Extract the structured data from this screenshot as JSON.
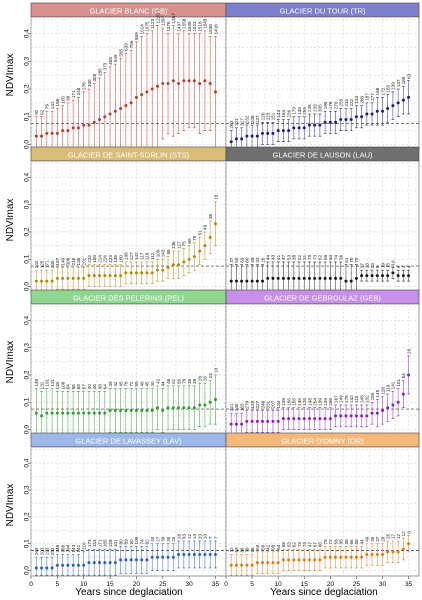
{
  "figure": {
    "ylabel": "NDVImax",
    "xlabel": "Years since deglaciation",
    "yticks": [
      "0.0",
      "0.1",
      "0.2",
      "0.3",
      "0.4"
    ],
    "xticks": [
      "0",
      "5",
      "10",
      "15",
      "20",
      "25",
      "30",
      "35"
    ]
  },
  "chart_data": [
    {
      "type": "scatter",
      "title": "GLACIER BLANC (GB)",
      "header_color": "#d9918f",
      "point_color": "#c0392b",
      "x": [
        1,
        2,
        3,
        4,
        5,
        6,
        7,
        8,
        9,
        10,
        11,
        12,
        13,
        14,
        15,
        16,
        17,
        18,
        19,
        20,
        21,
        22,
        23,
        24,
        25,
        26,
        27,
        28,
        29,
        30,
        31,
        32,
        33,
        34,
        35
      ],
      "y": [
        0.03,
        0.03,
        0.04,
        0.04,
        0.04,
        0.05,
        0.05,
        0.06,
        0.06,
        0.07,
        0.07,
        0.08,
        0.09,
        0.1,
        0.11,
        0.12,
        0.13,
        0.14,
        0.15,
        0.17,
        0.18,
        0.19,
        0.2,
        0.21,
        0.22,
        0.22,
        0.23,
        0.22,
        0.23,
        0.23,
        0.23,
        0.22,
        0.23,
        0.22,
        0.19
      ],
      "err": [
        0.07,
        0.07,
        0.08,
        0.08,
        0.09,
        0.09,
        0.1,
        0.1,
        0.11,
        0.12,
        0.13,
        0.14,
        0.15,
        0.16,
        0.17,
        0.17,
        0.18,
        0.19,
        0.19,
        0.2,
        0.21,
        0.21,
        0.21,
        0.22,
        0.2,
        0.18,
        0.2,
        0.18,
        0.18,
        0.17,
        0.17,
        0.18,
        0.18,
        0.17,
        0.2
      ],
      "labels": [
        "92",
        "62",
        "79",
        "141",
        "168",
        "105",
        "98",
        "171",
        "248",
        "276",
        "330",
        "309",
        "285",
        "373",
        "458",
        "549",
        "585",
        "639",
        "756",
        "859",
        "1014",
        "1075",
        "1123",
        "1220",
        "1287",
        "1376",
        "1457",
        "1497",
        "1558",
        "1545",
        "1523",
        "1518",
        "1543",
        "1538",
        "1416"
      ],
      "hline": 0.075,
      "xlim": [
        0,
        37
      ],
      "ylim": [
        -0.02,
        0.46
      ]
    },
    {
      "type": "scatter",
      "title": "GLACIER DU TOUR (TR)",
      "header_color": "#7e7fcc",
      "point_color": "#1a1a8c",
      "x": [
        1,
        2,
        3,
        4,
        5,
        6,
        7,
        8,
        9,
        10,
        11,
        12,
        13,
        14,
        15,
        16,
        17,
        18,
        19,
        20,
        21,
        22,
        23,
        24,
        25,
        26,
        27,
        28,
        29,
        30,
        31,
        32,
        33,
        34,
        35
      ],
      "y": [
        0.01,
        0.02,
        0.02,
        0.03,
        0.03,
        0.03,
        0.04,
        0.04,
        0.04,
        0.05,
        0.05,
        0.05,
        0.06,
        0.06,
        0.06,
        0.07,
        0.07,
        0.07,
        0.08,
        0.08,
        0.08,
        0.09,
        0.09,
        0.09,
        0.1,
        0.1,
        0.11,
        0.11,
        0.12,
        0.12,
        0.13,
        0.14,
        0.15,
        0.16,
        0.17
      ],
      "err": [
        0.04,
        0.04,
        0.04,
        0.04,
        0.04,
        0.04,
        0.04,
        0.04,
        0.04,
        0.04,
        0.04,
        0.04,
        0.04,
        0.04,
        0.04,
        0.04,
        0.04,
        0.04,
        0.04,
        0.04,
        0.04,
        0.04,
        0.04,
        0.04,
        0.04,
        0.04,
        0.04,
        0.04,
        0.05,
        0.05,
        0.05,
        0.05,
        0.05,
        0.05,
        0.06
      ],
      "labels": [
        "263",
        "221",
        "317",
        "252",
        "208",
        "137",
        "126",
        "223",
        "151",
        "143",
        "164",
        "236",
        "179",
        "148",
        "259",
        "226",
        "233",
        "305",
        "195",
        "176",
        "270",
        "250",
        "231",
        "222",
        "133",
        "268",
        "187",
        "277",
        "168",
        "172",
        "183",
        "139",
        "137",
        "185",
        "63"
      ],
      "hline": 0.075,
      "xlim": [
        0,
        37
      ],
      "ylim": [
        -0.02,
        0.46
      ]
    },
    {
      "type": "scatter",
      "title": "GLACIER DE SAINT-SORLIN (STS)",
      "header_color": "#d9bc78",
      "point_color": "#b8860b",
      "x": [
        1,
        2,
        3,
        4,
        5,
        6,
        7,
        8,
        9,
        10,
        11,
        12,
        13,
        14,
        15,
        16,
        17,
        18,
        19,
        20,
        21,
        22,
        23,
        24,
        25,
        26,
        27,
        28,
        29,
        30,
        31,
        32,
        33,
        34,
        35
      ],
      "y": [
        0.02,
        0.02,
        0.02,
        0.02,
        0.03,
        0.03,
        0.03,
        0.03,
        0.03,
        0.03,
        0.04,
        0.04,
        0.04,
        0.04,
        0.04,
        0.04,
        0.04,
        0.05,
        0.05,
        0.05,
        0.05,
        0.05,
        0.05,
        0.06,
        0.06,
        0.07,
        0.08,
        0.08,
        0.09,
        0.1,
        0.11,
        0.13,
        0.15,
        0.18,
        0.23
      ],
      "err": [
        0.04,
        0.04,
        0.04,
        0.04,
        0.04,
        0.04,
        0.04,
        0.04,
        0.04,
        0.04,
        0.04,
        0.04,
        0.04,
        0.04,
        0.04,
        0.04,
        0.04,
        0.04,
        0.04,
        0.04,
        0.04,
        0.04,
        0.04,
        0.04,
        0.04,
        0.04,
        0.05,
        0.05,
        0.05,
        0.05,
        0.05,
        0.05,
        0.05,
        0.06,
        0.08
      ],
      "labels": [
        "242",
        "125",
        "171",
        "245",
        "187",
        "140",
        "308",
        "218",
        "136",
        "201",
        "232",
        "189",
        "214",
        "226",
        "223",
        "136",
        "100",
        "108",
        "127",
        "142",
        "117",
        "119",
        "112",
        "109",
        "143",
        "88",
        "136",
        "127",
        "75",
        "65",
        "79",
        "51",
        "49",
        "38",
        "18"
      ],
      "hline": 0.075,
      "xlim": [
        0,
        37
      ],
      "ylim": [
        -0.02,
        0.46
      ]
    },
    {
      "type": "scatter",
      "title": "GLACIER DE LAUSON (LAU)",
      "header_color": "#6f6f6f",
      "point_color": "#1a1a1a",
      "x": [
        1,
        2,
        3,
        4,
        5,
        6,
        7,
        8,
        9,
        10,
        11,
        12,
        13,
        14,
        15,
        16,
        17,
        18,
        19,
        20,
        21,
        22,
        23,
        24,
        25,
        26,
        27,
        28,
        29,
        30,
        31,
        32,
        33,
        34,
        35
      ],
      "y": [
        0.02,
        0.02,
        0.02,
        0.02,
        0.02,
        0.02,
        0.02,
        0.03,
        0.03,
        0.03,
        0.03,
        0.03,
        0.03,
        0.03,
        0.03,
        0.03,
        0.03,
        0.03,
        0.03,
        0.03,
        0.03,
        0.03,
        0.02,
        0.02,
        0.03,
        0.04,
        0.04,
        0.04,
        0.04,
        0.04,
        0.04,
        0.05,
        0.04,
        0.04,
        0.04
      ],
      "err": [
        0.06,
        0.06,
        0.06,
        0.06,
        0.06,
        0.06,
        0.06,
        0.06,
        0.06,
        0.06,
        0.06,
        0.06,
        0.06,
        0.06,
        0.06,
        0.06,
        0.06,
        0.06,
        0.06,
        0.06,
        0.06,
        0.06,
        0.06,
        0.06,
        0.05,
        0.02,
        0.02,
        0.02,
        0.02,
        0.02,
        0.02,
        0.02,
        0.02,
        0.02,
        0.02
      ],
      "labels": [
        "37",
        "50",
        "69",
        "60",
        "49",
        "33",
        "25",
        "44",
        "43",
        "41",
        "47",
        "53",
        "38",
        "52",
        "31",
        "70",
        "73",
        "62",
        "58",
        "64",
        "74",
        "36",
        "51",
        "70",
        "70",
        "27",
        "23",
        "23",
        "8",
        "19",
        "13",
        "16",
        "6",
        "4",
        "4"
      ],
      "hline": 0.075,
      "xlim": [
        0,
        37
      ],
      "ylim": [
        -0.02,
        0.46
      ]
    },
    {
      "type": "scatter",
      "title": "GLACIER DES PELERINS (PEL)",
      "header_color": "#8fd68f",
      "point_color": "#2e9e2e",
      "x": [
        1,
        2,
        3,
        4,
        5,
        6,
        7,
        8,
        9,
        10,
        11,
        12,
        13,
        14,
        15,
        16,
        17,
        18,
        19,
        20,
        21,
        22,
        23,
        24,
        25,
        26,
        27,
        28,
        29,
        30,
        31,
        32,
        33,
        34,
        35
      ],
      "y": [
        0.06,
        0.05,
        0.06,
        0.06,
        0.06,
        0.06,
        0.06,
        0.06,
        0.06,
        0.06,
        0.06,
        0.06,
        0.06,
        0.06,
        0.07,
        0.07,
        0.07,
        0.07,
        0.07,
        0.07,
        0.07,
        0.07,
        0.07,
        0.08,
        0.07,
        0.08,
        0.08,
        0.08,
        0.08,
        0.08,
        0.08,
        0.09,
        0.09,
        0.1,
        0.11
      ],
      "err": [
        0.09,
        0.09,
        0.09,
        0.09,
        0.08,
        0.08,
        0.08,
        0.08,
        0.08,
        0.08,
        0.08,
        0.08,
        0.08,
        0.08,
        0.08,
        0.08,
        0.08,
        0.08,
        0.08,
        0.08,
        0.08,
        0.08,
        0.08,
        0.08,
        0.08,
        0.08,
        0.08,
        0.08,
        0.08,
        0.08,
        0.08,
        0.08,
        0.08,
        0.08,
        0.09
      ],
      "labels": [
        "148",
        "131",
        "191",
        "131",
        "118",
        "106",
        "84",
        "86",
        "68",
        "57",
        "40",
        "46",
        "38",
        "64",
        "39",
        "42",
        "45",
        "76",
        "72",
        "85",
        "49",
        "45",
        "40",
        "42",
        "44",
        "46",
        "51",
        "80",
        "78",
        "35",
        "39",
        "28",
        "26",
        "23",
        "10"
      ],
      "hline": 0.075,
      "xlim": [
        0,
        37
      ],
      "ylim": [
        -0.02,
        0.46
      ]
    },
    {
      "type": "scatter",
      "title": "GLACIER DE GEBROULAZ (GEB)",
      "header_color": "#c68fe8",
      "point_color": "#8b1cc9",
      "x": [
        1,
        2,
        3,
        4,
        5,
        6,
        7,
        8,
        9,
        10,
        11,
        12,
        13,
        14,
        15,
        16,
        17,
        18,
        19,
        20,
        21,
        22,
        23,
        24,
        25,
        26,
        27,
        28,
        29,
        30,
        31,
        32,
        33,
        34,
        35
      ],
      "y": [
        0.02,
        0.02,
        0.02,
        0.03,
        0.03,
        0.03,
        0.03,
        0.03,
        0.03,
        0.03,
        0.04,
        0.04,
        0.04,
        0.04,
        0.04,
        0.04,
        0.04,
        0.04,
        0.04,
        0.04,
        0.05,
        0.05,
        0.05,
        0.05,
        0.05,
        0.05,
        0.05,
        0.06,
        0.06,
        0.07,
        0.08,
        0.09,
        0.1,
        0.13,
        0.2
      ],
      "err": [
        0.04,
        0.04,
        0.04,
        0.04,
        0.04,
        0.04,
        0.04,
        0.04,
        0.04,
        0.04,
        0.04,
        0.04,
        0.04,
        0.04,
        0.04,
        0.04,
        0.04,
        0.04,
        0.04,
        0.04,
        0.04,
        0.04,
        0.04,
        0.04,
        0.04,
        0.04,
        0.04,
        0.04,
        0.05,
        0.05,
        0.05,
        0.05,
        0.05,
        0.05,
        0.07
      ],
      "labels": [
        "321",
        "240",
        "163",
        "279",
        "125",
        "227",
        "248",
        "331",
        "207",
        "134",
        "139",
        "165",
        "155",
        "145",
        "128",
        "148",
        "254",
        "199",
        "149",
        "208",
        "167",
        "149",
        "178",
        "142",
        "115",
        "148",
        "132",
        "155",
        "148",
        "128",
        "119",
        "141",
        "101",
        "54",
        "20"
      ],
      "hline": 0.075,
      "xlim": [
        0,
        37
      ],
      "ylim": [
        -0.02,
        0.46
      ]
    },
    {
      "type": "scatter",
      "title": "GLACIER DE LAVASSEY (LAV)",
      "header_color": "#9db8e8",
      "point_color": "#2a5bc7",
      "x": [
        1,
        2,
        3,
        4,
        5,
        6,
        7,
        8,
        9,
        10,
        11,
        12,
        13,
        14,
        15,
        16,
        17,
        18,
        19,
        20,
        21,
        22,
        23,
        24,
        25,
        26,
        27,
        28,
        29,
        30,
        31,
        32,
        33,
        34,
        35
      ],
      "y": [
        0.01,
        0.01,
        0.01,
        0.01,
        0.02,
        0.02,
        0.02,
        0.02,
        0.02,
        0.02,
        0.03,
        0.03,
        0.03,
        0.03,
        0.03,
        0.03,
        0.04,
        0.04,
        0.04,
        0.04,
        0.04,
        0.04,
        0.05,
        0.05,
        0.05,
        0.05,
        0.05,
        0.06,
        0.06,
        0.06,
        0.06,
        0.06,
        0.06,
        0.06,
        0.06
      ],
      "err": [
        0.04,
        0.04,
        0.04,
        0.04,
        0.04,
        0.04,
        0.04,
        0.04,
        0.04,
        0.05,
        0.05,
        0.05,
        0.05,
        0.05,
        0.05,
        0.05,
        0.05,
        0.05,
        0.05,
        0.05,
        0.05,
        0.05,
        0.05,
        0.05,
        0.05,
        0.05,
        0.05,
        0.05,
        0.05,
        0.05,
        0.05,
        0.05,
        0.05,
        0.05,
        0.05
      ],
      "labels": [
        "269",
        "203",
        "193",
        "252",
        "248",
        "188",
        "294",
        "143",
        "142",
        "110",
        "173",
        "153",
        "171",
        "165",
        "128",
        "101",
        "80",
        "89",
        "90",
        "108",
        "74",
        "82",
        "40",
        "27",
        "39",
        "35",
        "25",
        "28",
        "33",
        "12",
        "14",
        "20",
        "10",
        "7",
        "7"
      ],
      "hline": 0.075,
      "xlim": [
        0,
        37
      ],
      "ylim": [
        -0.02,
        0.46
      ]
    },
    {
      "type": "scatter",
      "title": "GLACIER D'OMNY (OR)",
      "header_color": "#f4b87a",
      "point_color": "#e07a10",
      "x": [
        1,
        2,
        3,
        4,
        5,
        6,
        7,
        8,
        9,
        10,
        11,
        12,
        13,
        14,
        15,
        16,
        17,
        18,
        19,
        20,
        21,
        22,
        23,
        24,
        25,
        26,
        27,
        28,
        29,
        30,
        31,
        32,
        33,
        34,
        35
      ],
      "y": [
        0.02,
        0.02,
        0.02,
        0.02,
        0.02,
        0.03,
        0.03,
        0.03,
        0.03,
        0.03,
        0.04,
        0.04,
        0.04,
        0.04,
        0.04,
        0.04,
        0.04,
        0.04,
        0.05,
        0.05,
        0.05,
        0.05,
        0.05,
        0.05,
        0.05,
        0.05,
        0.06,
        0.06,
        0.06,
        0.06,
        0.07,
        0.07,
        0.07,
        0.08,
        0.1
      ],
      "err": [
        0.04,
        0.04,
        0.04,
        0.04,
        0.04,
        0.04,
        0.04,
        0.04,
        0.04,
        0.04,
        0.04,
        0.04,
        0.04,
        0.04,
        0.04,
        0.04,
        0.04,
        0.04,
        0.04,
        0.04,
        0.04,
        0.04,
        0.04,
        0.04,
        0.04,
        0.04,
        0.04,
        0.04,
        0.04,
        0.04,
        0.04,
        0.04,
        0.04,
        0.04,
        0.03
      ],
      "labels": [
        "72",
        "63",
        "86",
        "78",
        "76",
        "50",
        "58",
        "42",
        "99",
        "64",
        "68",
        "53",
        "62",
        "73",
        "74",
        "47",
        "67",
        "60",
        "78",
        "72",
        "58",
        "45",
        "38",
        "56",
        "48",
        "44",
        "49",
        "35",
        "37",
        "28",
        "26",
        "17",
        "12",
        "12",
        "8"
      ],
      "hline": 0.075,
      "xlim": [
        0,
        37
      ],
      "ylim": [
        -0.02,
        0.46
      ]
    }
  ]
}
